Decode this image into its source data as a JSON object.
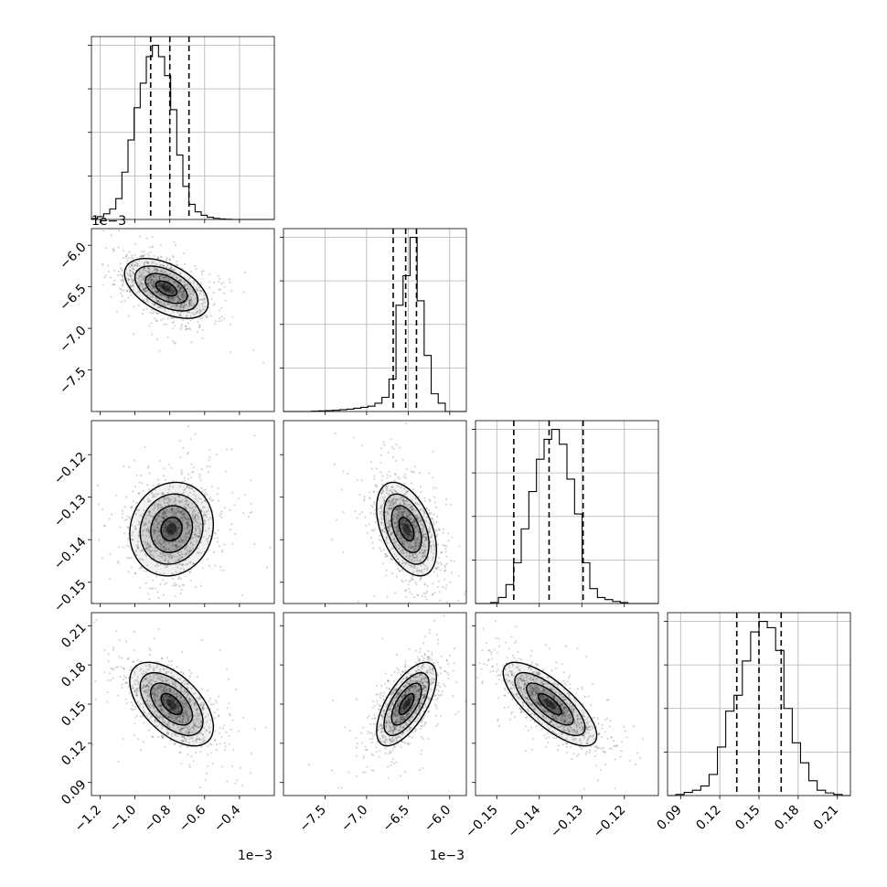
{
  "chart_data": {
    "type": "corner",
    "parameters": [
      {
        "range": [
          -1.25,
          -0.2
        ],
        "ticks": [
          -1.2,
          -1.0,
          -0.8,
          -0.6,
          -0.4
        ],
        "tick_labels": [
          "−1.2",
          "−1.0",
          "−0.8",
          "−0.6",
          "−0.4"
        ],
        "offset_text": "1e−3",
        "quantiles": [
          -0.91,
          -0.8,
          -0.69
        ]
      },
      {
        "range": [
          -8.0,
          -5.8
        ],
        "ticks": [
          -7.5,
          -7.0,
          -6.5,
          -6.0
        ],
        "tick_labels": [
          "−7.5",
          "−7.0",
          "−6.5",
          "−6.0"
        ],
        "offset_text": "1e−3",
        "quantiles": [
          -6.68,
          -6.53,
          -6.4
        ]
      },
      {
        "range": [
          -0.155,
          -0.112
        ],
        "ticks": [
          -0.15,
          -0.14,
          -0.13,
          -0.12
        ],
        "tick_labels": [
          "−0.15",
          "−0.14",
          "−0.13",
          "−0.12"
        ],
        "offset_text": "",
        "quantiles": [
          -0.146,
          -0.1377,
          -0.1297
        ]
      },
      {
        "range": [
          0.08,
          0.22
        ],
        "ticks": [
          0.09,
          0.12,
          0.15,
          0.18,
          0.21
        ],
        "tick_labels": [
          "0.09",
          "0.12",
          "0.15",
          "0.18",
          "0.21"
        ],
        "offset_text": "",
        "quantiles": [
          0.133,
          0.15,
          0.167
        ]
      }
    ],
    "histograms": [
      {
        "counts": [
          5,
          15,
          30,
          55,
          110,
          250,
          420,
          590,
          720,
          860,
          920,
          860,
          760,
          580,
          340,
          175,
          80,
          40,
          22,
          12,
          6,
          3,
          1,
          0,
          0,
          0,
          0,
          0,
          0,
          0
        ]
      },
      {
        "counts": [
          0,
          0,
          0,
          0,
          1,
          2,
          3,
          4,
          6,
          8,
          11,
          14,
          18,
          28,
          48,
          110,
          360,
          460,
          590,
          375,
          190,
          60,
          28,
          0,
          0,
          0
        ]
      },
      {
        "counts": [
          0,
          0,
          2,
          12,
          38,
          82,
          150,
          225,
          290,
          330,
          350,
          320,
          250,
          180,
          82,
          30,
          12,
          8,
          4,
          2,
          0,
          0,
          0,
          0
        ]
      },
      {
        "counts": [
          0,
          2,
          6,
          10,
          18,
          40,
          92,
          160,
          190,
          255,
          310,
          330,
          318,
          275,
          165,
          100,
          62,
          28,
          10,
          5,
          2,
          0
        ]
      }
    ],
    "pairs": [
      {
        "row": 1,
        "col": 0,
        "mean": [
          -0.82,
          -6.52
        ],
        "sd": [
          0.12,
          0.18
        ],
        "corr": -0.5
      },
      {
        "row": 2,
        "col": 0,
        "mean": [
          -0.79,
          -0.1375
        ],
        "sd": [
          0.12,
          0.0055
        ],
        "corr": 0.1
      },
      {
        "row": 2,
        "col": 1,
        "mean": [
          -6.52,
          -0.1375
        ],
        "sd": [
          0.18,
          0.0055
        ],
        "corr": -0.45
      },
      {
        "row": 3,
        "col": 0,
        "mean": [
          -0.79,
          0.15
        ],
        "sd": [
          0.12,
          0.016
        ],
        "corr": -0.55
      },
      {
        "row": 3,
        "col": 1,
        "mean": [
          -6.52,
          0.15
        ],
        "sd": [
          0.18,
          0.016
        ],
        "corr": 0.65
      },
      {
        "row": 3,
        "col": 2,
        "mean": [
          -0.1375,
          0.15
        ],
        "sd": [
          0.0055,
          0.016
        ],
        "corr": -0.75
      }
    ],
    "grid": true
  }
}
